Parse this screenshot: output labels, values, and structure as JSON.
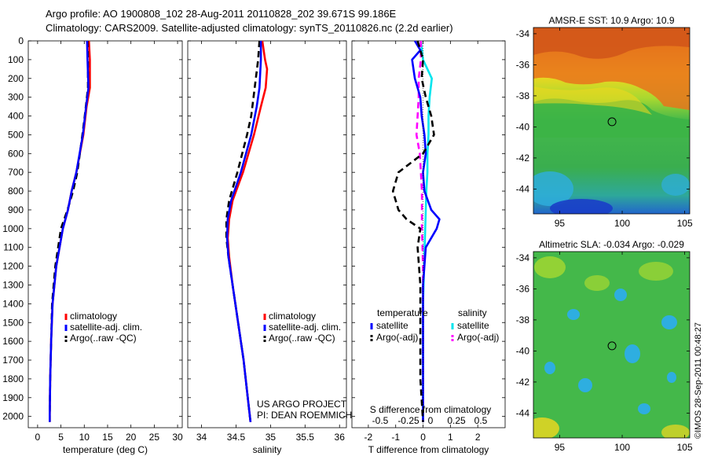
{
  "header": {
    "line1": "Argo profile: AO 1900808_102 28-Aug-2011 20110828_202 39.671S 99.186E",
    "line2": "Climatology: CARS2009. Satellite-adjusted climatology: synTS_20110826.nc (2.2d earlier)"
  },
  "credit": "©IMOS 28-Sep-2011 00:48:27",
  "chart_data": [
    {
      "type": "line",
      "id": "temperature",
      "xlabel": "temperature (deg C)",
      "xlim": [
        -2,
        31
      ],
      "xticks": [
        0,
        5,
        10,
        15,
        20,
        25,
        30
      ],
      "ylim": [
        2060,
        0
      ],
      "yticks": [
        0,
        100,
        200,
        300,
        400,
        500,
        600,
        700,
        800,
        900,
        1000,
        1100,
        1200,
        1300,
        1400,
        1500,
        1600,
        1700,
        1800,
        1900,
        2000
      ],
      "legend": [
        "climatology",
        "satellite-adj. clim.",
        "Argo(..raw -QC)"
      ],
      "colors": {
        "climatology": "#ff0000",
        "satellite": "#0000ff",
        "argo": "#000000"
      },
      "series": [
        {
          "name": "climatology",
          "depth": [
            0,
            100,
            250,
            350,
            500,
            700,
            800,
            900,
            1000,
            1200,
            1400,
            1600,
            1800,
            2000,
            2030
          ],
          "values": [
            11.0,
            11.2,
            11.2,
            10.5,
            9.8,
            8.3,
            7.3,
            6.5,
            5.4,
            4.0,
            3.2,
            2.9,
            2.7,
            2.6,
            2.6
          ]
        },
        {
          "name": "satellite-adj. clim.",
          "depth": [
            0,
            100,
            250,
            350,
            500,
            700,
            800,
            900,
            1000,
            1200,
            1400,
            1600,
            1800,
            2000,
            2030
          ],
          "values": [
            10.6,
            10.7,
            10.9,
            10.4,
            9.7,
            8.3,
            7.3,
            6.5,
            5.4,
            4.0,
            3.2,
            2.9,
            2.7,
            2.6,
            2.6
          ]
        },
        {
          "name": "Argo(..raw -QC)",
          "depth": [
            0,
            100,
            250,
            400,
            500,
            700,
            800,
            900,
            1000,
            1200,
            1400,
            1600,
            1800,
            2000,
            2030
          ],
          "values": [
            10.7,
            10.8,
            10.8,
            10.1,
            9.6,
            8.5,
            7.6,
            6.4,
            5.0,
            3.8,
            3.1,
            2.9,
            2.7,
            2.6,
            2.6
          ]
        }
      ]
    },
    {
      "type": "line",
      "id": "salinity",
      "xlabel": "salinity",
      "xlim": [
        33.8,
        36.1
      ],
      "xticks": [
        34,
        34.5,
        35,
        35.5,
        36
      ],
      "ylim": [
        2060,
        0
      ],
      "legend": [
        "climatology",
        "satellite-adj. clim.",
        "Argo(..raw -QC)"
      ],
      "annotation": [
        "US ARGO PROJECT",
        "PI: DEAN ROEMMICH"
      ],
      "series": [
        {
          "name": "climatology",
          "depth": [
            0,
            100,
            150,
            250,
            350,
            500,
            700,
            850,
            950,
            1050,
            1150,
            1300,
            1500,
            1700,
            1900,
            2030
          ],
          "values": [
            34.88,
            34.92,
            34.95,
            34.93,
            34.86,
            34.76,
            34.6,
            34.45,
            34.4,
            34.38,
            34.4,
            34.45,
            34.53,
            34.61,
            34.67,
            34.71
          ]
        },
        {
          "name": "satellite-adj. clim.",
          "depth": [
            0,
            100,
            250,
            350,
            500,
            700,
            850,
            950,
            1050,
            1150,
            1300,
            1500,
            1700,
            1900,
            2030
          ],
          "values": [
            34.86,
            34.86,
            34.84,
            34.8,
            34.72,
            34.57,
            34.43,
            34.38,
            34.37,
            34.39,
            34.45,
            34.53,
            34.61,
            34.67,
            34.71
          ]
        },
        {
          "name": "Argo(..raw -QC)",
          "depth": [
            0,
            100,
            250,
            400,
            500,
            700,
            850,
            950,
            1050,
            1150,
            1300,
            1500,
            1700,
            1900,
            2030
          ],
          "values": [
            34.84,
            34.82,
            34.77,
            34.72,
            34.66,
            34.52,
            34.4,
            34.36,
            34.36,
            34.39,
            34.45,
            34.53,
            34.61,
            34.67,
            34.71
          ]
        }
      ]
    },
    {
      "type": "line",
      "id": "difference",
      "xlabel": "T difference from climatology",
      "top_xlabel": "S difference from climatology",
      "xlim": [
        -2.6,
        3.0
      ],
      "xticks": [
        -2,
        -1,
        0,
        1,
        2
      ],
      "top_xticks": [
        "-0.5",
        "-0.25",
        "0",
        "0.25",
        "0.5"
      ],
      "ylim": [
        2060,
        0
      ],
      "legend_headers": [
        "temperature",
        "salinity"
      ],
      "legend": [
        "satellite",
        "Argo(-adj)",
        "satellite",
        "Argo(-adj)"
      ],
      "colors": {
        "temperature_satellite": "#0000ff",
        "temperature_argo": "#000000",
        "salinity_satellite": "#00e5ee",
        "salinity_argo": "#ff00ff"
      },
      "series": [
        {
          "name": "temperature satellite",
          "depth": [
            0,
            50,
            100,
            200,
            300,
            400,
            500,
            600,
            700,
            800,
            900,
            950,
            1000,
            1100,
            1300,
            1500,
            1800,
            2030
          ],
          "values": [
            -0.3,
            -0.1,
            -0.4,
            -0.3,
            -0.1,
            -0.05,
            0.05,
            0.1,
            0.0,
            0.05,
            0.3,
            0.6,
            0.5,
            0.1,
            0.0,
            0.0,
            0.0,
            0.0
          ]
        },
        {
          "name": "temperature Argo(-adj)",
          "depth": [
            0,
            50,
            100,
            200,
            300,
            400,
            500,
            600,
            700,
            800,
            900,
            950,
            1000,
            1100,
            1300,
            1500,
            1800,
            2030
          ],
          "values": [
            -0.2,
            -0.1,
            0.0,
            -0.05,
            0.1,
            0.3,
            0.4,
            0.0,
            -0.9,
            -1.1,
            -0.9,
            -0.6,
            -0.1,
            -0.2,
            -0.1,
            -0.1,
            -0.1,
            0.0
          ]
        },
        {
          "name": "salinity satellite",
          "depth": [
            0,
            100,
            200,
            300,
            400,
            500,
            600,
            700,
            800,
            1000,
            1200,
            1400,
            1700,
            2030
          ],
          "values": [
            -0.02,
            0.0,
            0.08,
            0.06,
            0.05,
            0.05,
            0.04,
            0.04,
            0.03,
            0.02,
            0.01,
            0.0,
            0.0,
            0.0
          ]
        },
        {
          "name": "salinity Argo(-adj)",
          "depth": [
            0,
            100,
            200,
            300,
            400,
            500,
            600,
            700,
            800,
            1000,
            1200,
            1400,
            1700,
            2030
          ],
          "values": [
            -0.02,
            -0.02,
            -0.04,
            -0.04,
            -0.05,
            -0.06,
            -0.03,
            -0.02,
            -0.01,
            -0.01,
            0.0,
            0.0,
            0.0,
            0.0
          ]
        }
      ]
    },
    {
      "type": "heatmap",
      "id": "sst_map",
      "title": "AMSR-E SST: 10.9 Argo: 10.9",
      "xticks": [
        95,
        100,
        105
      ],
      "yticks": [
        -34,
        -36,
        -38,
        -40,
        -42,
        -44
      ],
      "xlim": [
        92.9,
        105.4
      ],
      "ylim": [
        -45.6,
        -33.6
      ],
      "marker": {
        "lon": 99.186,
        "lat": -39.671
      }
    },
    {
      "type": "heatmap",
      "id": "sla_map",
      "title": "Altimetric SLA: -0.034 Argo: -0.029",
      "xticks": [
        95,
        100,
        105
      ],
      "yticks": [
        -34,
        -36,
        -38,
        -40,
        -42,
        -44
      ],
      "xlim": [
        92.9,
        105.4
      ],
      "ylim": [
        -45.6,
        -33.6
      ],
      "marker": {
        "lon": 99.186,
        "lat": -39.671
      }
    }
  ]
}
